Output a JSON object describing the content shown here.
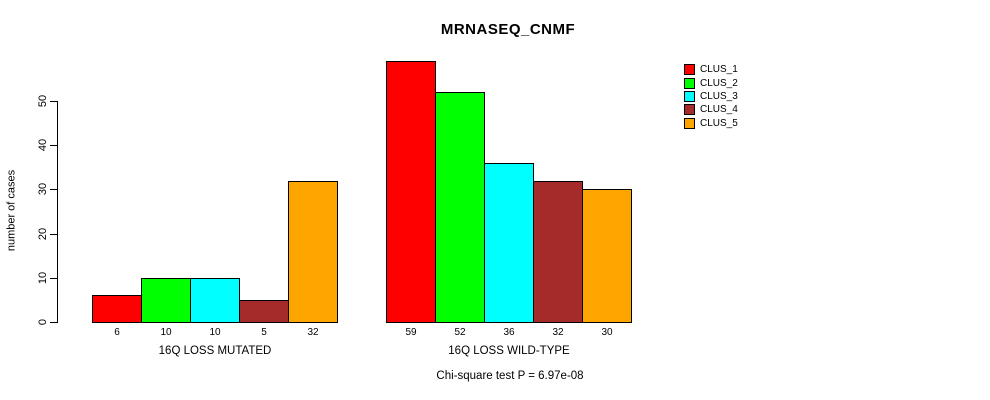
{
  "chart_data": {
    "type": "bar",
    "title": "MRNASEQ_CNMF",
    "ylabel": "number of cases",
    "subtitle": "Chi-square test P = 6.97e-08",
    "yticks": [
      0,
      10,
      20,
      30,
      40,
      50
    ],
    "ylim": [
      0,
      59
    ],
    "grid": false,
    "legend_position": "right",
    "series": [
      {
        "name": "CLUS_1",
        "color": "#FF0000"
      },
      {
        "name": "CLUS_2",
        "color": "#00FF00"
      },
      {
        "name": "CLUS_3",
        "color": "#00FFFF"
      },
      {
        "name": "CLUS_4",
        "color": "#A52A2A"
      },
      {
        "name": "CLUS_5",
        "color": "#FFA500"
      }
    ],
    "groups": [
      {
        "label": "16Q LOSS MUTATED",
        "values": [
          6,
          10,
          10,
          5,
          32
        ]
      },
      {
        "label": "16Q LOSS WILD-TYPE",
        "values": [
          59,
          52,
          36,
          32,
          30
        ]
      }
    ]
  }
}
